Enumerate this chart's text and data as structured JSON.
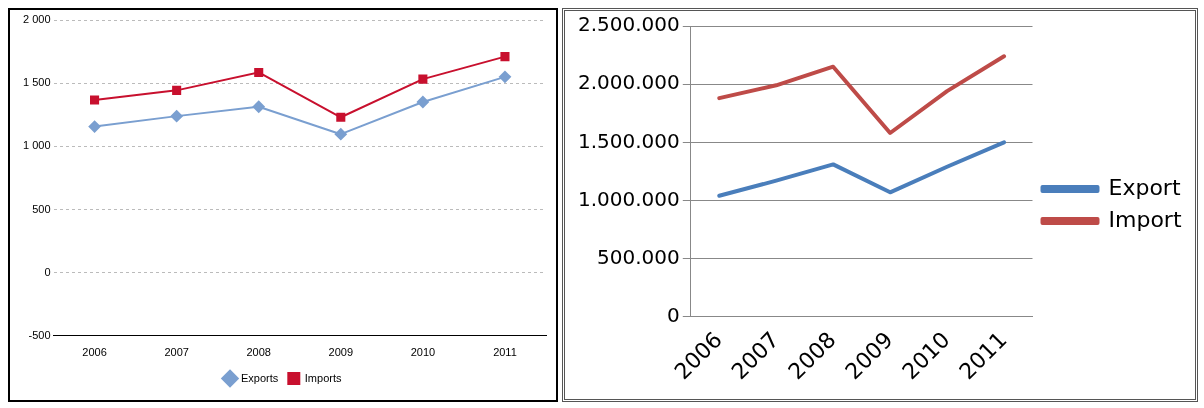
{
  "chart_data": [
    {
      "type": "line",
      "categories": [
        "2006",
        "2007",
        "2008",
        "2009",
        "2010",
        "2011"
      ],
      "ylim": [
        -500,
        2000
      ],
      "yticks": [
        {
          "value": -500,
          "label": "-500"
        },
        {
          "value": 0,
          "label": "0"
        },
        {
          "value": 500,
          "label": "500"
        },
        {
          "value": 1000,
          "label": "1 000"
        },
        {
          "value": 1500,
          "label": "1 500"
        },
        {
          "value": 2000,
          "label": "2 000"
        }
      ],
      "grid": "y",
      "legend": "bottom",
      "series": [
        {
          "name": "Exports",
          "color": "#7a9fd0",
          "marker": "diamond",
          "values": [
            1156,
            1239,
            1313,
            1096,
            1351,
            1550
          ]
        },
        {
          "name": "Imports",
          "color": "#c8102e",
          "marker": "square",
          "values": [
            1366,
            1443,
            1585,
            1230,
            1532,
            1710
          ]
        }
      ]
    },
    {
      "type": "line",
      "categories": [
        "2006",
        "2007",
        "2008",
        "2009",
        "2010",
        "2011"
      ],
      "ylim": [
        0,
        2500000
      ],
      "yticks": [
        {
          "value": 0,
          "label": "0"
        },
        {
          "value": 500000,
          "label": "500.000"
        },
        {
          "value": 1000000,
          "label": "1.000.000"
        },
        {
          "value": 1500000,
          "label": "1.500.000"
        },
        {
          "value": 2000000,
          "label": "2.000.000"
        },
        {
          "value": 2500000,
          "label": "2.500.000"
        }
      ],
      "grid": "y",
      "legend": "right",
      "marker": "none",
      "series": [
        {
          "name": "Export",
          "color": "#4a7ebb",
          "values": [
            1040000,
            1170000,
            1310000,
            1070000,
            1290000,
            1500000
          ]
        },
        {
          "name": "Import",
          "color": "#be4b48",
          "values": [
            1880000,
            1990000,
            2150000,
            1580000,
            1940000,
            2240000
          ]
        }
      ]
    }
  ]
}
